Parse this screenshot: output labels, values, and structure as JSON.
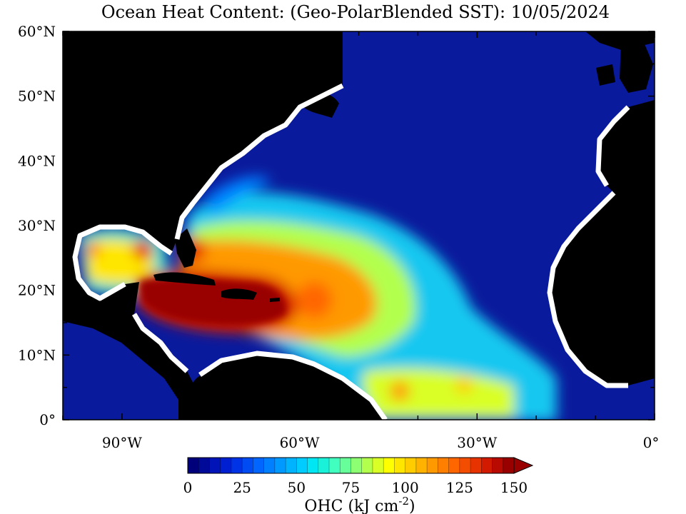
{
  "title": "Ocean Heat Content: (Geo-PolarBlended SST): 10/05/2024",
  "map": {
    "lat_range": [
      0,
      60
    ],
    "lon_range": [
      -100,
      0
    ],
    "lat_ticks": [
      {
        "value": 60,
        "label": "60°N"
      },
      {
        "value": 50,
        "label": "50°N"
      },
      {
        "value": 40,
        "label": "40°N"
      },
      {
        "value": 30,
        "label": "30°N"
      },
      {
        "value": 20,
        "label": "20°N"
      },
      {
        "value": 10,
        "label": "10°N"
      },
      {
        "value": 0,
        "label": "0°"
      }
    ],
    "lon_ticks": [
      {
        "value": -90,
        "label": "90°W"
      },
      {
        "value": -60,
        "label": "60°W"
      },
      {
        "value": -30,
        "label": "30°W"
      },
      {
        "value": 0,
        "label": "0°"
      }
    ],
    "colors": {
      "ocean_background": "#0a1a9c",
      "land": "#000000",
      "coast_nodata": "#ffffff"
    }
  },
  "colorbar": {
    "min": 0,
    "max": 150,
    "ticks": [
      {
        "value": 0,
        "label": "0"
      },
      {
        "value": 25,
        "label": "25"
      },
      {
        "value": 50,
        "label": "50"
      },
      {
        "value": 75,
        "label": "75"
      },
      {
        "value": 100,
        "label": "100"
      },
      {
        "value": 125,
        "label": "125"
      },
      {
        "value": 150,
        "label": "150"
      }
    ],
    "unit_label": "OHC (kJ cm",
    "unit_exponent": "-2",
    "unit_close": ")",
    "colors": [
      "#00007a",
      "#000a99",
      "#0014b8",
      "#001fd1",
      "#0033e6",
      "#004cf2",
      "#0066ff",
      "#0080ff",
      "#0099ff",
      "#00b3ff",
      "#00ccff",
      "#00e6f2",
      "#19f2d9",
      "#40ffbf",
      "#66ff99",
      "#8cff73",
      "#b3ff4d",
      "#d9ff26",
      "#ffff00",
      "#ffe600",
      "#ffcc00",
      "#ffb300",
      "#ff9900",
      "#ff8000",
      "#ff6600",
      "#f24d00",
      "#e63300",
      "#d11a00",
      "#b80a00",
      "#990000"
    ],
    "overflow_color": "#990000"
  }
}
